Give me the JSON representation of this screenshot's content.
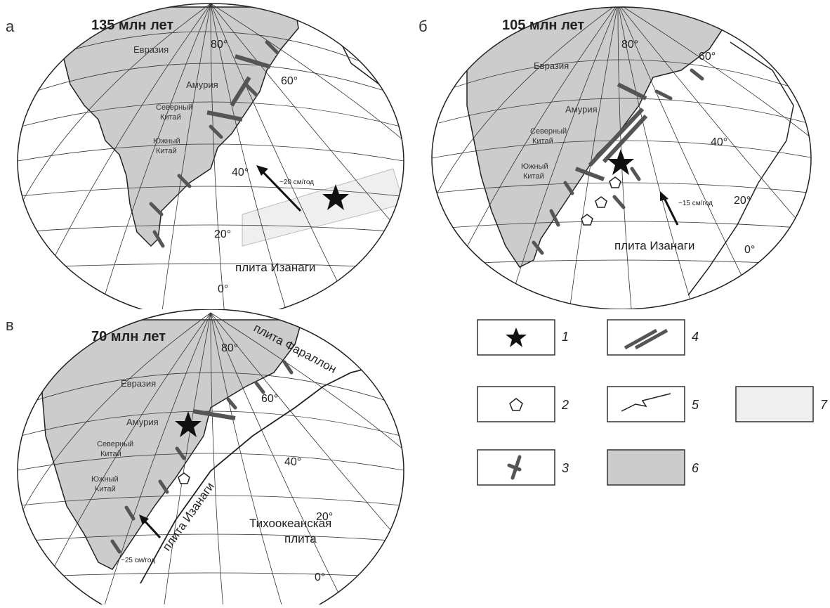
{
  "panels": [
    {
      "letter": "а",
      "age": "135 млн лет",
      "regions": [
        "Евразия",
        "Амурия",
        "Северный",
        "Китай",
        "Южный",
        "Китай"
      ],
      "latitudes": [
        "80°",
        "60°",
        "40°",
        "20°",
        "0°"
      ],
      "plate": "плита Изанаги",
      "rate": "~20 см/год"
    },
    {
      "letter": "б",
      "age": "105 млн лет",
      "regions": [
        "Евразия",
        "Амурия",
        "Северный",
        "Китай",
        "Южный",
        "Китай"
      ],
      "latitudes": [
        "80°",
        "60°",
        "40°",
        "20°",
        "0°"
      ],
      "plate": "плита Изанаги",
      "rate": "~15 см/год"
    },
    {
      "letter": "в",
      "age": "70 млн лет",
      "regions": [
        "Евразия",
        "Амурия",
        "Северный",
        "Китай",
        "Южный",
        "Китай"
      ],
      "latitudes": [
        "80°",
        "60°",
        "40°",
        "20°",
        "0°"
      ],
      "plate_farallon": "плита Фараллон",
      "plate_izanagi": "плита Изанаги",
      "plate_pacific_1": "Тихоокеанская",
      "plate_pacific_2": "плита",
      "rate": "~25 см/год"
    }
  ],
  "legend": {
    "numbers": [
      "1",
      "2",
      "3",
      "4",
      "5",
      "6",
      "7"
    ],
    "items": [
      "star-symbol",
      "pentagon-symbol",
      "subduction-symbol",
      "strike-slip-symbol",
      "spreading-ridge-symbol",
      "continent-fill",
      "light-band-fill"
    ]
  },
  "colors": {
    "continent": "#cccccc",
    "band": "#efefef",
    "symbol": "#555555",
    "grid": "#333333"
  }
}
